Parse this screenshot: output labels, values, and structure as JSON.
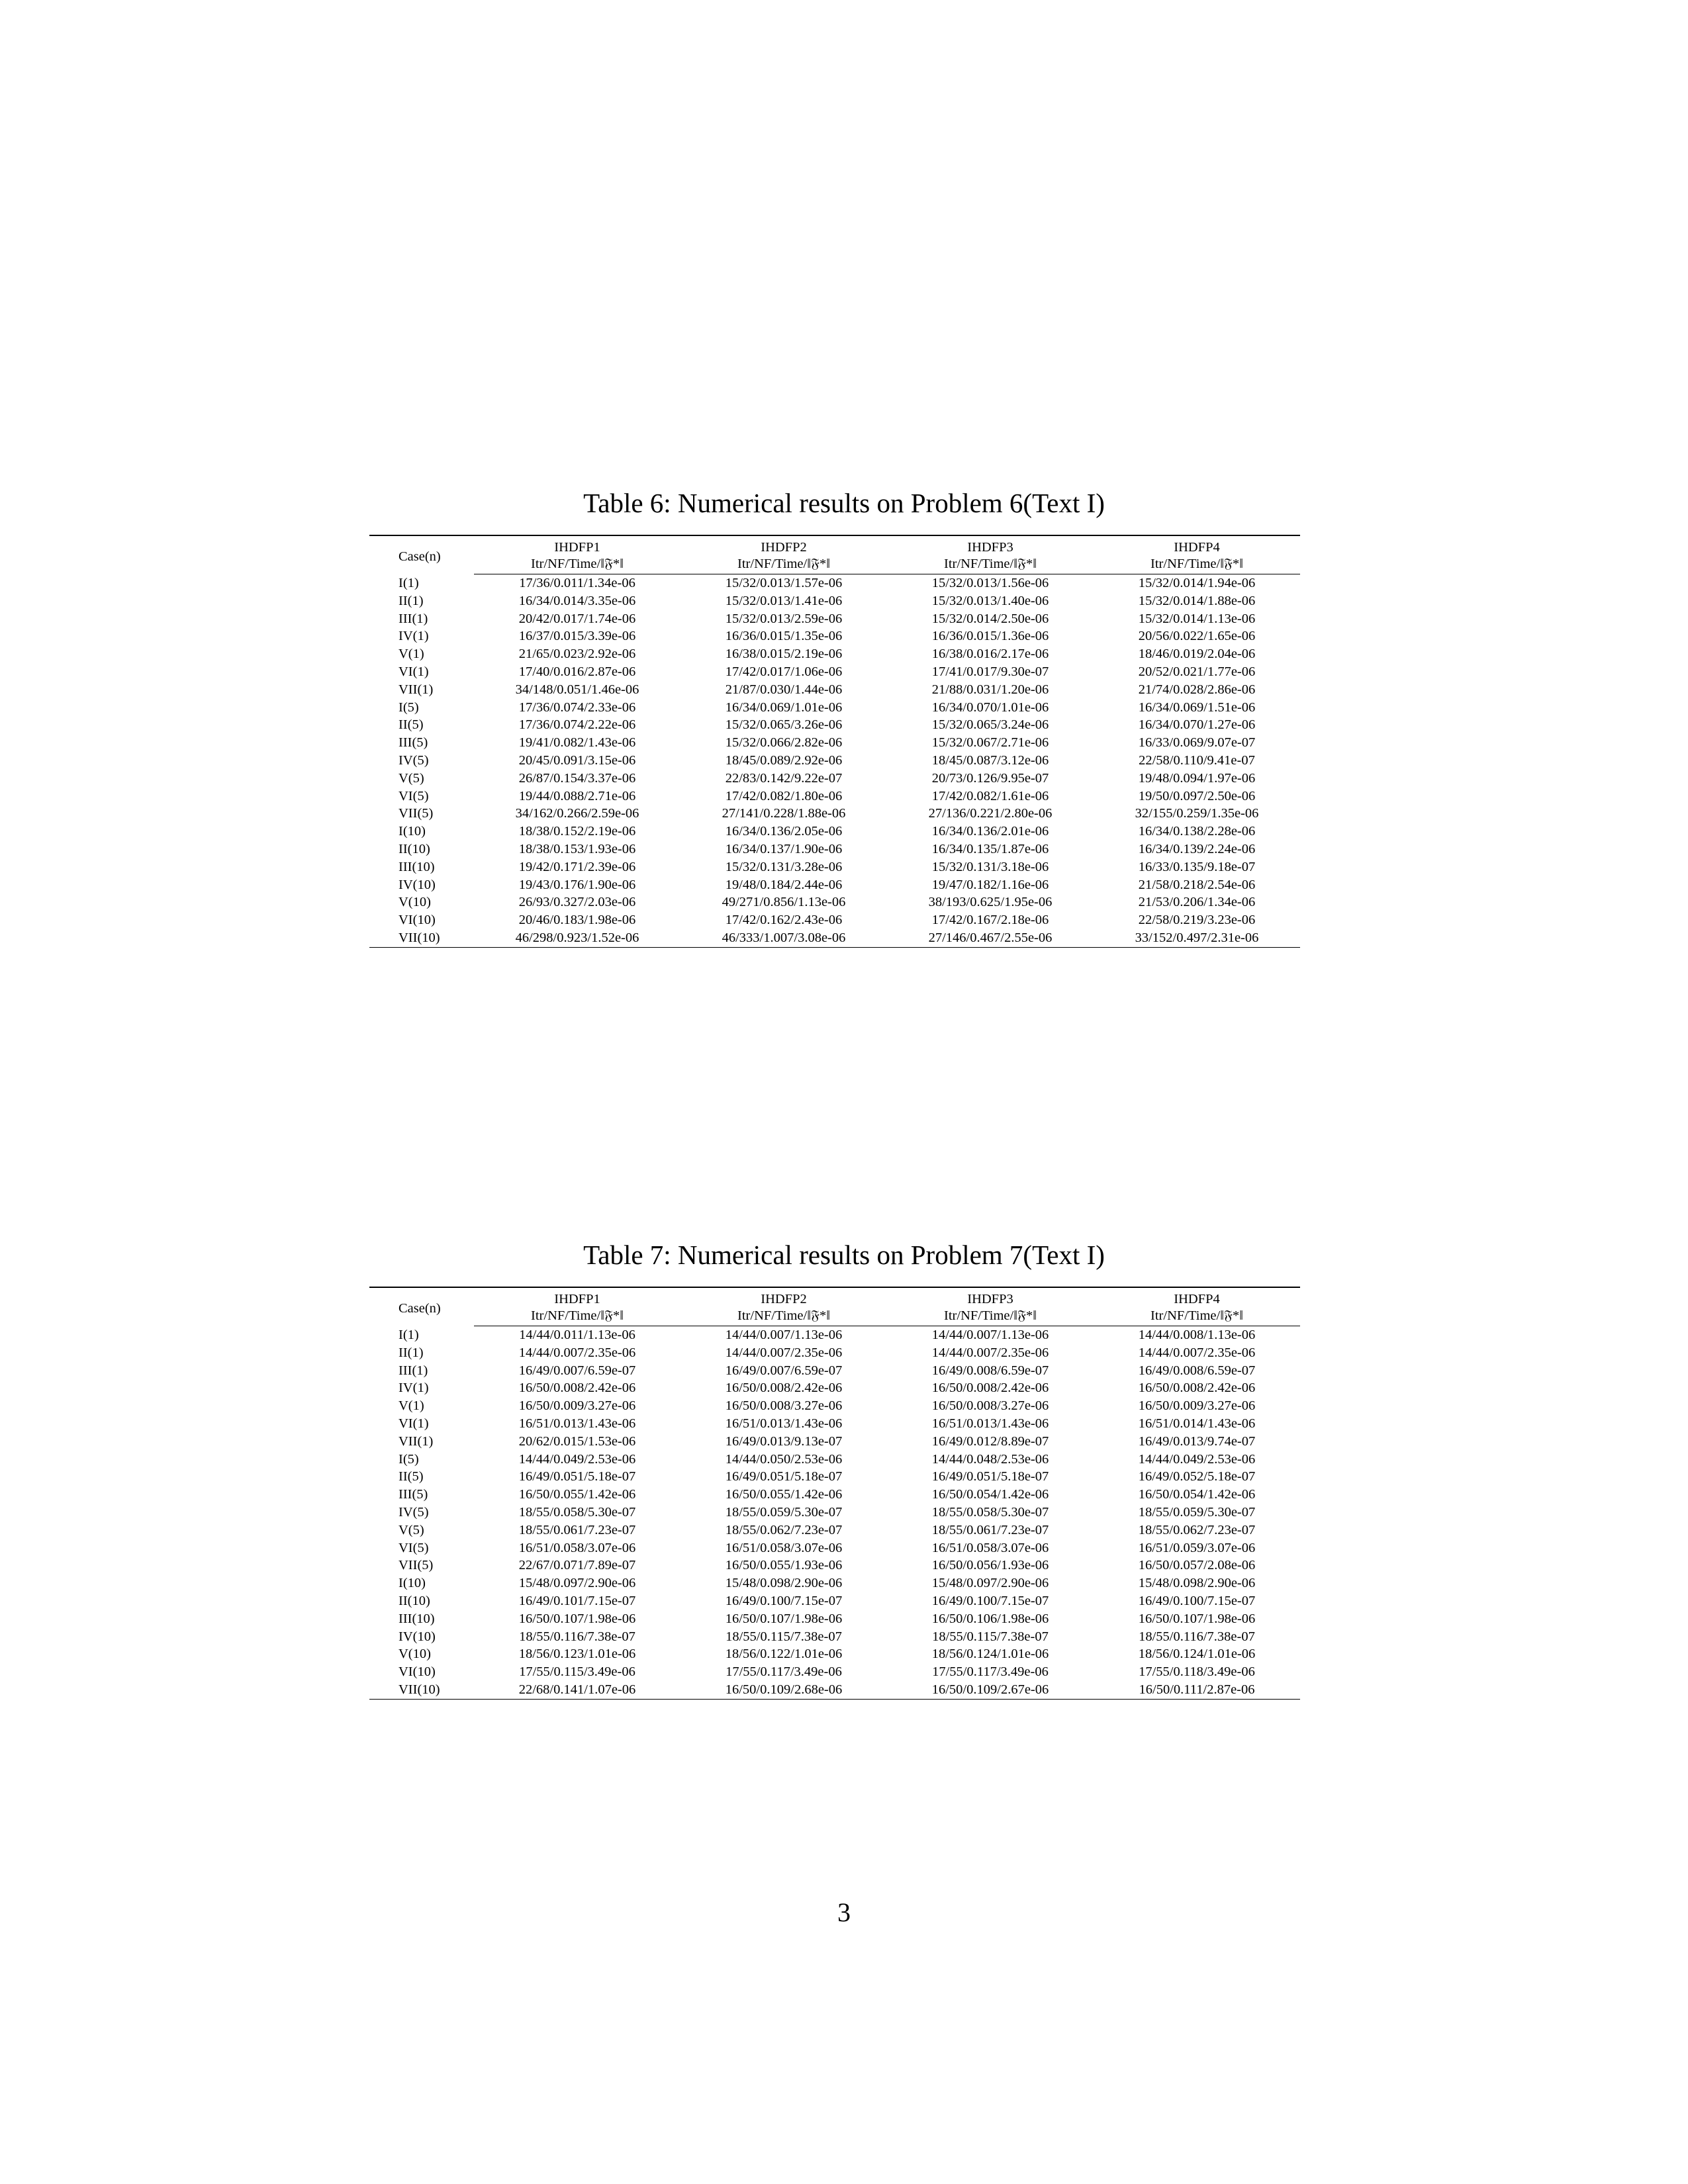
{
  "page_number": "3",
  "tables": [
    {
      "caption": "Table 6: Numerical results on Problem 6(Text I)",
      "case_header": "Case(n)",
      "methods": [
        "IHDFP1",
        "IHDFP2",
        "IHDFP3",
        "IHDFP4"
      ],
      "subheader": "Itr/NF/Time/‖𝔉*‖",
      "rows": [
        [
          "I(1)",
          "17/36/0.011/1.34e-06",
          "15/32/0.013/1.57e-06",
          "15/32/0.013/1.56e-06",
          "15/32/0.014/1.94e-06"
        ],
        [
          "II(1)",
          "16/34/0.014/3.35e-06",
          "15/32/0.013/1.41e-06",
          "15/32/0.013/1.40e-06",
          "15/32/0.014/1.88e-06"
        ],
        [
          "III(1)",
          "20/42/0.017/1.74e-06",
          "15/32/0.013/2.59e-06",
          "15/32/0.014/2.50e-06",
          "15/32/0.014/1.13e-06"
        ],
        [
          "IV(1)",
          "16/37/0.015/3.39e-06",
          "16/36/0.015/1.35e-06",
          "16/36/0.015/1.36e-06",
          "20/56/0.022/1.65e-06"
        ],
        [
          "V(1)",
          "21/65/0.023/2.92e-06",
          "16/38/0.015/2.19e-06",
          "16/38/0.016/2.17e-06",
          "18/46/0.019/2.04e-06"
        ],
        [
          "VI(1)",
          "17/40/0.016/2.87e-06",
          "17/42/0.017/1.06e-06",
          "17/41/0.017/9.30e-07",
          "20/52/0.021/1.77e-06"
        ],
        [
          "VII(1)",
          "34/148/0.051/1.46e-06",
          "21/87/0.030/1.44e-06",
          "21/88/0.031/1.20e-06",
          "21/74/0.028/2.86e-06"
        ],
        [
          "I(5)",
          "17/36/0.074/2.33e-06",
          "16/34/0.069/1.01e-06",
          "16/34/0.070/1.01e-06",
          "16/34/0.069/1.51e-06"
        ],
        [
          "II(5)",
          "17/36/0.074/2.22e-06",
          "15/32/0.065/3.26e-06",
          "15/32/0.065/3.24e-06",
          "16/34/0.070/1.27e-06"
        ],
        [
          "III(5)",
          "19/41/0.082/1.43e-06",
          "15/32/0.066/2.82e-06",
          "15/32/0.067/2.71e-06",
          "16/33/0.069/9.07e-07"
        ],
        [
          "IV(5)",
          "20/45/0.091/3.15e-06",
          "18/45/0.089/2.92e-06",
          "18/45/0.087/3.12e-06",
          "22/58/0.110/9.41e-07"
        ],
        [
          "V(5)",
          "26/87/0.154/3.37e-06",
          "22/83/0.142/9.22e-07",
          "20/73/0.126/9.95e-07",
          "19/48/0.094/1.97e-06"
        ],
        [
          "VI(5)",
          "19/44/0.088/2.71e-06",
          "17/42/0.082/1.80e-06",
          "17/42/0.082/1.61e-06",
          "19/50/0.097/2.50e-06"
        ],
        [
          "VII(5)",
          "34/162/0.266/2.59e-06",
          "27/141/0.228/1.88e-06",
          "27/136/0.221/2.80e-06",
          "32/155/0.259/1.35e-06"
        ],
        [
          "I(10)",
          "18/38/0.152/2.19e-06",
          "16/34/0.136/2.05e-06",
          "16/34/0.136/2.01e-06",
          "16/34/0.138/2.28e-06"
        ],
        [
          "II(10)",
          "18/38/0.153/1.93e-06",
          "16/34/0.137/1.90e-06",
          "16/34/0.135/1.87e-06",
          "16/34/0.139/2.24e-06"
        ],
        [
          "III(10)",
          "19/42/0.171/2.39e-06",
          "15/32/0.131/3.28e-06",
          "15/32/0.131/3.18e-06",
          "16/33/0.135/9.18e-07"
        ],
        [
          "IV(10)",
          "19/43/0.176/1.90e-06",
          "19/48/0.184/2.44e-06",
          "19/47/0.182/1.16e-06",
          "21/58/0.218/2.54e-06"
        ],
        [
          "V(10)",
          "26/93/0.327/2.03e-06",
          "49/271/0.856/1.13e-06",
          "38/193/0.625/1.95e-06",
          "21/53/0.206/1.34e-06"
        ],
        [
          "VI(10)",
          "20/46/0.183/1.98e-06",
          "17/42/0.162/2.43e-06",
          "17/42/0.167/2.18e-06",
          "22/58/0.219/3.23e-06"
        ],
        [
          "VII(10)",
          "46/298/0.923/1.52e-06",
          "46/333/1.007/3.08e-06",
          "27/146/0.467/2.55e-06",
          "33/152/0.497/2.31e-06"
        ]
      ]
    },
    {
      "caption": "Table 7: Numerical results on Problem 7(Text I)",
      "case_header": "Case(n)",
      "methods": [
        "IHDFP1",
        "IHDFP2",
        "IHDFP3",
        "IHDFP4"
      ],
      "subheader": "Itr/NF/Time/‖𝔉*‖",
      "rows": [
        [
          "I(1)",
          "14/44/0.011/1.13e-06",
          "14/44/0.007/1.13e-06",
          "14/44/0.007/1.13e-06",
          "14/44/0.008/1.13e-06"
        ],
        [
          "II(1)",
          "14/44/0.007/2.35e-06",
          "14/44/0.007/2.35e-06",
          "14/44/0.007/2.35e-06",
          "14/44/0.007/2.35e-06"
        ],
        [
          "III(1)",
          "16/49/0.007/6.59e-07",
          "16/49/0.007/6.59e-07",
          "16/49/0.008/6.59e-07",
          "16/49/0.008/6.59e-07"
        ],
        [
          "IV(1)",
          "16/50/0.008/2.42e-06",
          "16/50/0.008/2.42e-06",
          "16/50/0.008/2.42e-06",
          "16/50/0.008/2.42e-06"
        ],
        [
          "V(1)",
          "16/50/0.009/3.27e-06",
          "16/50/0.008/3.27e-06",
          "16/50/0.008/3.27e-06",
          "16/50/0.009/3.27e-06"
        ],
        [
          "VI(1)",
          "16/51/0.013/1.43e-06",
          "16/51/0.013/1.43e-06",
          "16/51/0.013/1.43e-06",
          "16/51/0.014/1.43e-06"
        ],
        [
          "VII(1)",
          "20/62/0.015/1.53e-06",
          "16/49/0.013/9.13e-07",
          "16/49/0.012/8.89e-07",
          "16/49/0.013/9.74e-07"
        ],
        [
          "I(5)",
          "14/44/0.049/2.53e-06",
          "14/44/0.050/2.53e-06",
          "14/44/0.048/2.53e-06",
          "14/44/0.049/2.53e-06"
        ],
        [
          "II(5)",
          "16/49/0.051/5.18e-07",
          "16/49/0.051/5.18e-07",
          "16/49/0.051/5.18e-07",
          "16/49/0.052/5.18e-07"
        ],
        [
          "III(5)",
          "16/50/0.055/1.42e-06",
          "16/50/0.055/1.42e-06",
          "16/50/0.054/1.42e-06",
          "16/50/0.054/1.42e-06"
        ],
        [
          "IV(5)",
          "18/55/0.058/5.30e-07",
          "18/55/0.059/5.30e-07",
          "18/55/0.058/5.30e-07",
          "18/55/0.059/5.30e-07"
        ],
        [
          "V(5)",
          "18/55/0.061/7.23e-07",
          "18/55/0.062/7.23e-07",
          "18/55/0.061/7.23e-07",
          "18/55/0.062/7.23e-07"
        ],
        [
          "VI(5)",
          "16/51/0.058/3.07e-06",
          "16/51/0.058/3.07e-06",
          "16/51/0.058/3.07e-06",
          "16/51/0.059/3.07e-06"
        ],
        [
          "VII(5)",
          "22/67/0.071/7.89e-07",
          "16/50/0.055/1.93e-06",
          "16/50/0.056/1.93e-06",
          "16/50/0.057/2.08e-06"
        ],
        [
          "I(10)",
          "15/48/0.097/2.90e-06",
          "15/48/0.098/2.90e-06",
          "15/48/0.097/2.90e-06",
          "15/48/0.098/2.90e-06"
        ],
        [
          "II(10)",
          "16/49/0.101/7.15e-07",
          "16/49/0.100/7.15e-07",
          "16/49/0.100/7.15e-07",
          "16/49/0.100/7.15e-07"
        ],
        [
          "III(10)",
          "16/50/0.107/1.98e-06",
          "16/50/0.107/1.98e-06",
          "16/50/0.106/1.98e-06",
          "16/50/0.107/1.98e-06"
        ],
        [
          "IV(10)",
          "18/55/0.116/7.38e-07",
          "18/55/0.115/7.38e-07",
          "18/55/0.115/7.38e-07",
          "18/55/0.116/7.38e-07"
        ],
        [
          "V(10)",
          "18/56/0.123/1.01e-06",
          "18/56/0.122/1.01e-06",
          "18/56/0.124/1.01e-06",
          "18/56/0.124/1.01e-06"
        ],
        [
          "VI(10)",
          "17/55/0.115/3.49e-06",
          "17/55/0.117/3.49e-06",
          "17/55/0.117/3.49e-06",
          "17/55/0.118/3.49e-06"
        ],
        [
          "VII(10)",
          "22/68/0.141/1.07e-06",
          "16/50/0.109/2.68e-06",
          "16/50/0.109/2.67e-06",
          "16/50/0.111/2.87e-06"
        ]
      ]
    }
  ]
}
